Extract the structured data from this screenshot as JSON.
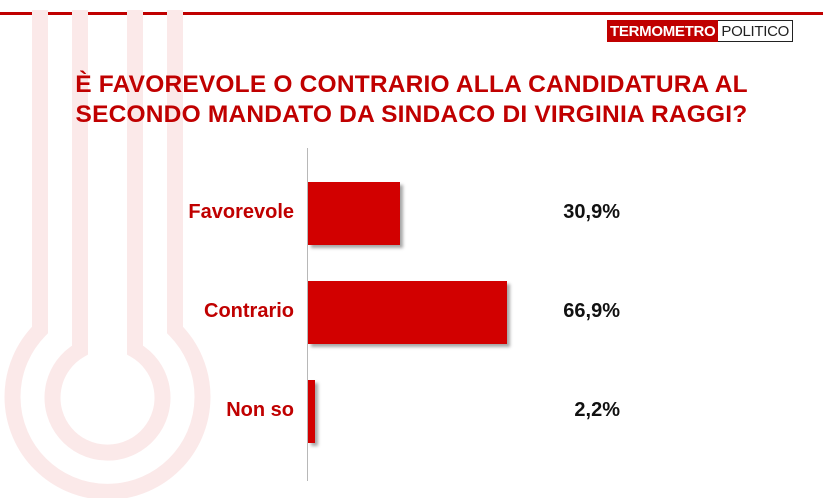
{
  "brand": {
    "left": "TERMOMETRO",
    "right": "POLITICO"
  },
  "colors": {
    "accent": "#c00000",
    "bar": "#d20000",
    "watermark": "#fbe9e9"
  },
  "chart_data": {
    "type": "bar",
    "orientation": "horizontal",
    "title_lines": [
      "È FAVOREVOLE O CONTRARIO ALLA CANDIDATURA AL",
      "SECONDO MANDATO DA SINDACO DI VIRGINIA RAGGI?"
    ],
    "categories": [
      "Favorevole",
      "Contrario",
      "Non so"
    ],
    "values": [
      30.9,
      66.9,
      2.2
    ],
    "value_labels": [
      "30,9%",
      "66,9%",
      "2,2%"
    ],
    "xlim": [
      0,
      100
    ],
    "unit": "%",
    "grid": false,
    "legend": "none"
  }
}
